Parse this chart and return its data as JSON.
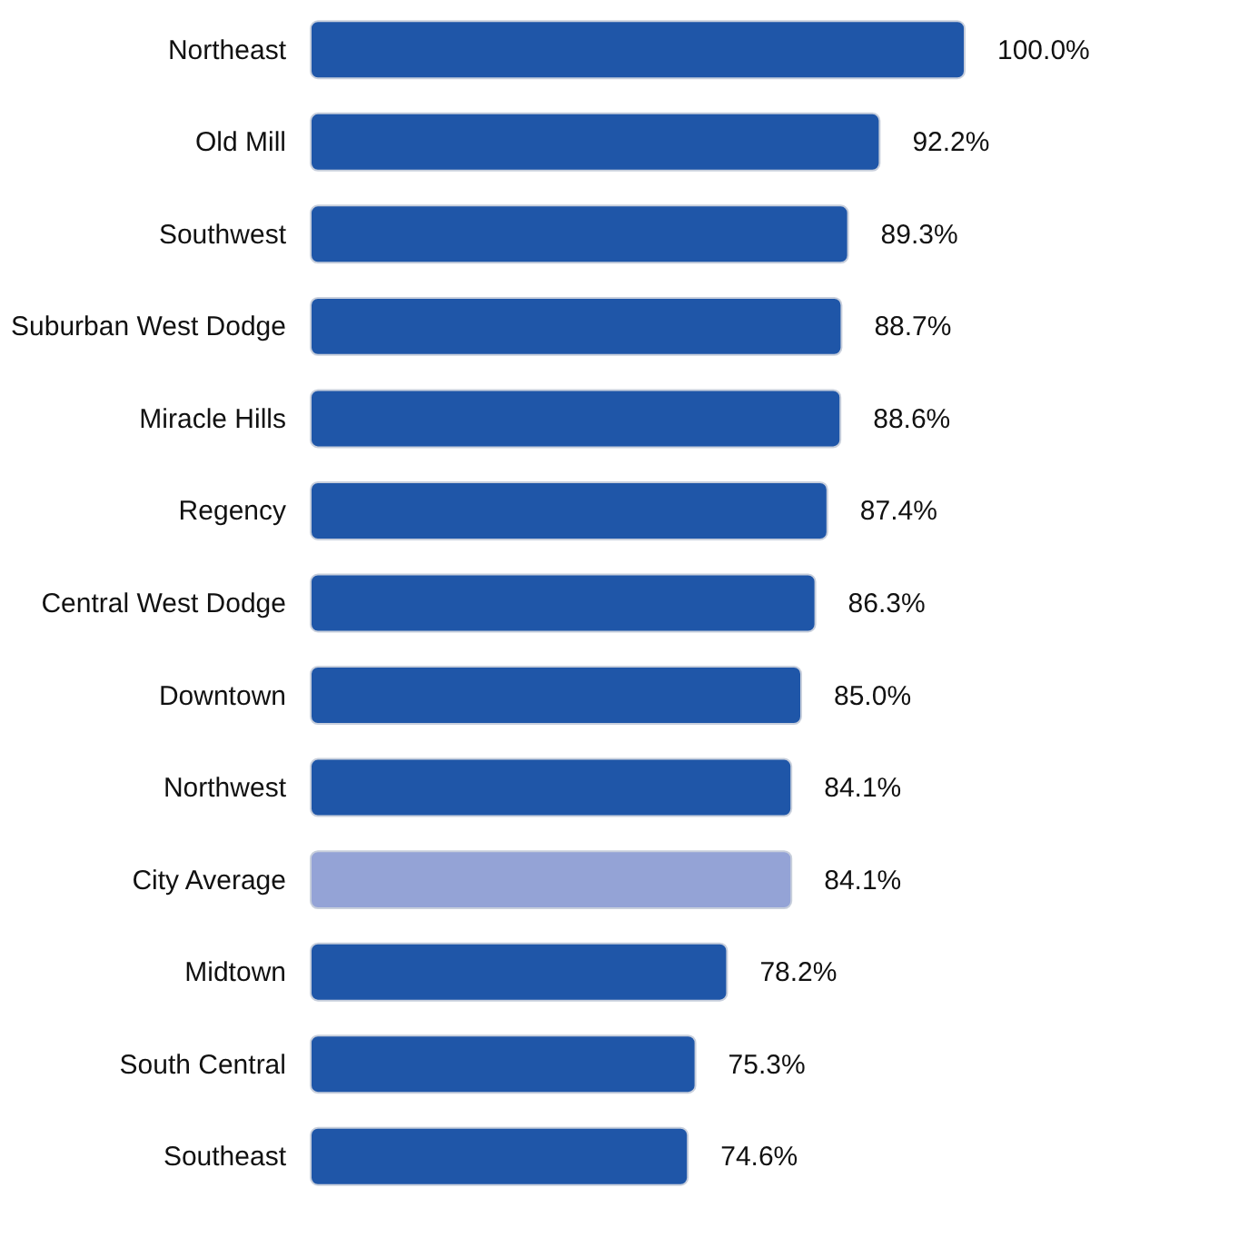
{
  "chart_data": {
    "type": "bar",
    "orientation": "horizontal",
    "categories": [
      "Northeast",
      "Old Mill",
      "Southwest",
      "Suburban West Dodge",
      "Miracle Hills",
      "Regency",
      "Central West Dodge",
      "Downtown",
      "Northwest",
      "City Average",
      "Midtown",
      "South Central",
      "Southeast"
    ],
    "values": [
      100.0,
      92.2,
      89.3,
      88.7,
      88.6,
      87.4,
      86.3,
      85.0,
      84.1,
      84.1,
      78.2,
      75.3,
      74.6
    ],
    "value_labels": [
      "100.0%",
      "92.2%",
      "89.3%",
      "88.7%",
      "88.6%",
      "87.4%",
      "86.3%",
      "85.0%",
      "84.1%",
      "84.1%",
      "78.2%",
      "75.3%",
      "74.6%"
    ],
    "colors": [
      "#1f56a8",
      "#1f56a8",
      "#1f56a8",
      "#1f56a8",
      "#1f56a8",
      "#1f56a8",
      "#1f56a8",
      "#1f56a8",
      "#1f56a8",
      "#94a3d6",
      "#1f56a8",
      "#1f56a8",
      "#1f56a8"
    ],
    "xlim": [
      40,
      100
    ],
    "tick_labels": "y",
    "grid": false
  }
}
